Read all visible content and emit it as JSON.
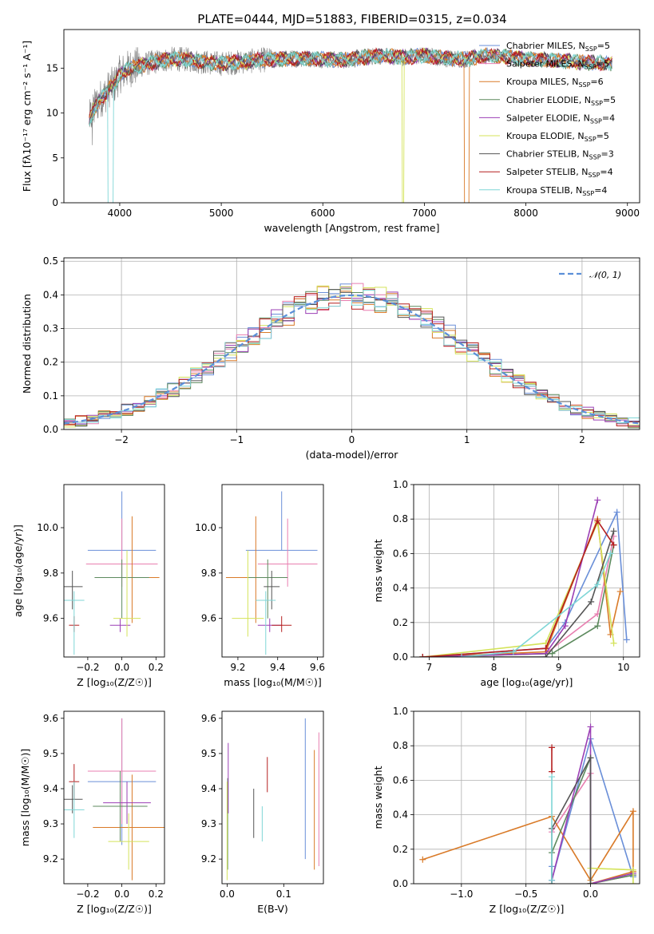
{
  "figure": {
    "title": "PLATE=0444, MJD=51883, FIBERID=0315, z=0.034"
  },
  "colors": {
    "model_palette": [
      "#6a8fd8",
      "#e87fb0",
      "#d97a28",
      "#5d8a5e",
      "#9b3fb5",
      "#d4e35a",
      "#555555",
      "#b51f1f",
      "#7fd6d6"
    ],
    "data": "#7f7f7f",
    "normal": "#5b8fd8",
    "grid": "#b0b0b0"
  },
  "chart_data": [
    {
      "id": "spectrum",
      "type": "line",
      "xlabel": "wavelength [Angstrom, rest frame]",
      "ylabel": "Flux [fλ10⁻¹⁷ erg cm⁻² s⁻¹ A⁻¹]",
      "xlim": [
        3450,
        9120
      ],
      "ylim": [
        0,
        19.3
      ],
      "xticks": [
        4000,
        5000,
        6000,
        7000,
        8000,
        9000
      ],
      "yticks": [
        0,
        5,
        10,
        15
      ],
      "grid": false,
      "legend_position": "top-right",
      "data_series": {
        "name": "data",
        "x": [
          3700,
          3750,
          3800,
          3850,
          3900,
          3950,
          4000,
          4100,
          4200,
          4300,
          4400,
          4500,
          4600,
          4700,
          4800,
          4900,
          5000,
          5200,
          5400,
          5600,
          5800,
          6000,
          6200,
          6400,
          6600,
          6800,
          7000,
          7200,
          7400,
          7600,
          7800,
          8000,
          8200,
          8400,
          8600,
          8850
        ],
        "y": [
          9.2,
          10.5,
          11.5,
          12.0,
          12.8,
          13.2,
          14.3,
          15.0,
          15.3,
          15.6,
          15.8,
          16.0,
          16.0,
          15.9,
          15.7,
          15.6,
          15.5,
          15.7,
          15.9,
          16.0,
          16.1,
          16.0,
          15.9,
          16.2,
          16.4,
          16.2,
          16.4,
          16.1,
          16.0,
          16.4,
          16.3,
          16.0,
          15.9,
          15.8,
          15.6,
          15.5
        ]
      },
      "series": [
        {
          "name": "Chabrier MILES, N_SSP=5",
          "label_main": "Chabrier MILES, N",
          "label_sub": "SSP",
          "label_tail": "=5"
        },
        {
          "name": "Salpeter MILES, N_SSP=5",
          "label_main": "Salpeter MILES, N",
          "label_sub": "SSP",
          "label_tail": "=5"
        },
        {
          "name": "Kroupa MILES, N_SSP=6",
          "label_main": "Kroupa MILES, N",
          "label_sub": "SSP",
          "label_tail": "=6"
        },
        {
          "name": "Chabrier ELODIE, N_SSP=5",
          "label_main": "Chabrier ELODIE, N",
          "label_sub": "SSP",
          "label_tail": "=5"
        },
        {
          "name": "Salpeter ELODIE, N_SSP=4",
          "label_main": "Salpeter ELODIE, N",
          "label_sub": "SSP",
          "label_tail": "=4"
        },
        {
          "name": "Kroupa ELODIE, N_SSP=5",
          "label_main": "Kroupa ELODIE, N",
          "label_sub": "SSP",
          "label_tail": "=5"
        },
        {
          "name": "Chabrier STELIB, N_SSP=3",
          "label_main": "Chabrier STELIB, N",
          "label_sub": "SSP",
          "label_tail": "=3"
        },
        {
          "name": "Salpeter STELIB, N_SSP=4",
          "label_main": "Salpeter STELIB, N",
          "label_sub": "SSP",
          "label_tail": "=4"
        },
        {
          "name": "Kroupa STELIB, N_SSP=4",
          "label_main": "Kroupa STELIB, N",
          "label_sub": "SSP",
          "label_tail": "=4"
        }
      ]
    },
    {
      "id": "residuals",
      "type": "histogram",
      "xlabel": "(data-model)/error",
      "ylabel": "Normed distribution",
      "xlim": [
        -2.5,
        2.5
      ],
      "ylim": [
        0,
        0.51
      ],
      "xticks": [
        -2,
        -1,
        0,
        1,
        2
      ],
      "xtick_labels": [
        "−2",
        "−1",
        "0",
        "1",
        "2"
      ],
      "yticks": [
        0,
        0.1,
        0.2,
        0.3,
        0.4,
        0.5
      ],
      "ytick_labels": [
        "0.0",
        "0.1",
        "0.2",
        "0.3",
        "0.4",
        "0.5"
      ],
      "grid": true,
      "legend_position": "top-right",
      "normal_label": "𝒩(0, 1)",
      "bin_width": 0.1
    },
    {
      "id": "age_vs_Z",
      "type": "errorbar",
      "xlabel": "Z [log₁₀(Z/Z☉)]",
      "ylabel": "age  [log₁₀(age/yr)]",
      "xlim": [
        -0.34,
        0.25
      ],
      "ylim": [
        9.43,
        10.19
      ],
      "xticks": [
        -0.2,
        0.0,
        0.2
      ],
      "xtick_labels": [
        "−0.2",
        "0.0",
        "0.2"
      ],
      "yticks": [
        9.6,
        9.8,
        10.0
      ],
      "ytick_labels": [
        "9.6",
        "9.8",
        "10.0"
      ],
      "grid": false,
      "points": [
        {
          "x": 0.0,
          "xerr": 0.2,
          "y": 9.9,
          "yerr": [
            0.0,
            0.26
          ]
        },
        {
          "x": 0.0,
          "xerr": 0.21,
          "y": 9.84,
          "yerr": [
            0.1,
            0.2
          ]
        },
        {
          "x": 0.06,
          "xerr": 0.16,
          "y": 9.78,
          "yerr": [
            0.2,
            0.27
          ]
        },
        {
          "x": 0.0,
          "xerr": 0.16,
          "y": 9.78,
          "yerr": [
            0.18,
            0.08
          ]
        },
        {
          "x": -0.01,
          "xerr": 0.06,
          "y": 9.57,
          "yerr": [
            0.03,
            0.03
          ]
        },
        {
          "x": 0.03,
          "xerr": 0.08,
          "y": 9.6,
          "yerr": [
            0.08,
            0.3
          ]
        },
        {
          "x": -0.29,
          "xerr": 0.06,
          "y": 9.74,
          "yerr": [
            0.1,
            0.07
          ]
        },
        {
          "x": -0.28,
          "xerr": 0.03,
          "y": 9.57,
          "yerr": [
            0.03,
            0.04
          ]
        },
        {
          "x": -0.28,
          "xerr": 0.06,
          "y": 9.68,
          "yerr": [
            0.24,
            0.04
          ]
        }
      ]
    },
    {
      "id": "age_vs_mass",
      "type": "errorbar",
      "xlabel": "mass [log₁₀(M/M☉)]",
      "ylabel": "",
      "xlim": [
        9.12,
        9.63
      ],
      "ylim": [
        9.43,
        10.19
      ],
      "xticks": [
        9.2,
        9.4,
        9.6
      ],
      "yticks": [
        9.6,
        9.8,
        10.0
      ],
      "ytick_labels": [
        "9.6",
        "9.8",
        "10.0"
      ],
      "grid": false,
      "points": [
        {
          "x": 9.42,
          "xerr": 0.18,
          "y": 9.9,
          "yerr": [
            0.0,
            0.26
          ]
        },
        {
          "x": 9.45,
          "xerr": 0.15,
          "y": 9.84,
          "yerr": [
            0.1,
            0.2
          ]
        },
        {
          "x": 9.29,
          "xerr": 0.15,
          "y": 9.78,
          "yerr": [
            0.2,
            0.27
          ]
        },
        {
          "x": 9.35,
          "xerr": 0.1,
          "y": 9.78,
          "yerr": [
            0.18,
            0.08
          ]
        },
        {
          "x": 9.36,
          "xerr": 0.06,
          "y": 9.57,
          "yerr": [
            0.03,
            0.03
          ]
        },
        {
          "x": 9.25,
          "xerr": 0.08,
          "y": 9.6,
          "yerr": [
            0.08,
            0.3
          ]
        },
        {
          "x": 9.37,
          "xerr": 0.04,
          "y": 9.74,
          "yerr": [
            0.1,
            0.07
          ]
        },
        {
          "x": 9.42,
          "xerr": 0.05,
          "y": 9.57,
          "yerr": [
            0.03,
            0.04
          ]
        },
        {
          "x": 9.34,
          "xerr": 0.05,
          "y": 9.68,
          "yerr": [
            0.24,
            0.04
          ]
        }
      ]
    },
    {
      "id": "weight_vs_age",
      "type": "line",
      "xlabel": "age  [log₁₀(age/yr)]",
      "ylabel": "mass weight",
      "xlim": [
        6.76,
        10.25
      ],
      "ylim": [
        0,
        1
      ],
      "xticks": [
        7,
        8,
        9,
        10
      ],
      "yticks": [
        0,
        0.2,
        0.4,
        0.6,
        0.8,
        1.0
      ],
      "ytick_labels": [
        "0.0",
        "0.2",
        "0.4",
        "0.6",
        "0.8",
        "1.0"
      ],
      "grid": true,
      "series": [
        {
          "x": [
            6.9,
            8.8,
            9.1,
            9.9,
            10.05
          ],
          "y": [
            0.0,
            0.05,
            0.2,
            0.84,
            0.1
          ]
        },
        {
          "x": [
            6.9,
            8.8,
            9.6,
            9.85
          ],
          "y": [
            0.0,
            0.02,
            0.25,
            0.7
          ]
        },
        {
          "x": [
            6.9,
            8.8,
            9.6,
            9.8,
            9.95
          ],
          "y": [
            0.0,
            0.03,
            0.8,
            0.13,
            0.38
          ]
        },
        {
          "x": [
            6.9,
            8.9,
            9.6,
            9.85
          ],
          "y": [
            0.0,
            0.02,
            0.18,
            0.65
          ]
        },
        {
          "x": [
            6.9,
            8.8,
            9.1,
            9.6
          ],
          "y": [
            0.0,
            0.02,
            0.18,
            0.91
          ]
        },
        {
          "x": [
            6.9,
            8.8,
            9.6,
            9.85
          ],
          "y": [
            0.0,
            0.08,
            0.78,
            0.08
          ]
        },
        {
          "x": [
            6.9,
            8.8,
            9.5,
            9.85
          ],
          "y": [
            0.0,
            0.0,
            0.32,
            0.73
          ]
        },
        {
          "x": [
            6.9,
            8.8,
            9.6,
            9.85
          ],
          "y": [
            0.0,
            0.05,
            0.79,
            0.65
          ]
        },
        {
          "x": [
            7.5,
            8.3,
            9.6,
            9.8
          ],
          "y": [
            0.0,
            0.03,
            0.42,
            0.6
          ]
        }
      ]
    },
    {
      "id": "mass_vs_Z",
      "type": "errorbar",
      "xlabel": "Z [log₁₀(Z/Z☉)]",
      "ylabel": "mass [log₁₀(M/M☉)]",
      "xlim": [
        -0.34,
        0.25
      ],
      "ylim": [
        9.13,
        9.62
      ],
      "xticks": [
        -0.2,
        0.0,
        0.2
      ],
      "xtick_labels": [
        "−0.2",
        "0.0",
        "0.2"
      ],
      "yticks": [
        9.2,
        9.3,
        9.4,
        9.5,
        9.6
      ],
      "ytick_labels": [
        "9.2",
        "9.3",
        "9.4",
        "9.5",
        "9.6"
      ],
      "grid": false,
      "points": [
        {
          "x": 0.0,
          "xerr": 0.2,
          "y": 9.42,
          "yerr": 0.18
        },
        {
          "x": 0.0,
          "xerr": 0.2,
          "y": 9.45,
          "yerr": 0.15
        },
        {
          "x": 0.06,
          "xerr": 0.23,
          "y": 9.29,
          "yerr": 0.15
        },
        {
          "x": -0.01,
          "xerr": 0.16,
          "y": 9.35,
          "yerr": 0.1
        },
        {
          "x": 0.03,
          "xerr": 0.14,
          "y": 9.36,
          "yerr": 0.06
        },
        {
          "x": 0.04,
          "xerr": 0.12,
          "y": 9.25,
          "yerr": 0.08
        },
        {
          "x": -0.29,
          "xerr": 0.06,
          "y": 9.37,
          "yerr": 0.04
        },
        {
          "x": -0.28,
          "xerr": 0.03,
          "y": 9.42,
          "yerr": 0.05
        },
        {
          "x": -0.28,
          "xerr": 0.06,
          "y": 9.34,
          "yerr": 0.08
        }
      ]
    },
    {
      "id": "mass_vs_ebv",
      "type": "errorbar",
      "xlabel": "E(B-V)",
      "ylabel": "",
      "xlim": [
        -0.009,
        0.17
      ],
      "ylim": [
        9.13,
        9.62
      ],
      "xticks": [
        0.0,
        0.1
      ],
      "xtick_labels": [
        "0.0",
        "0.1"
      ],
      "yticks": [
        9.2,
        9.3,
        9.4,
        9.5,
        9.6
      ],
      "ytick_labels": [
        "9.2",
        "9.3",
        "9.4",
        "9.5",
        "9.6"
      ],
      "grid": false,
      "points": [
        {
          "x": 0.138,
          "y": 9.4,
          "yerr": 0.2
        },
        {
          "x": 0.162,
          "y": 9.37,
          "yerr": 0.19
        },
        {
          "x": 0.154,
          "y": 9.34,
          "yerr": 0.17
        },
        {
          "x": 0.001,
          "y": 9.3,
          "yerr": 0.13
        },
        {
          "x": 0.002,
          "y": 9.43,
          "yerr": 0.1
        },
        {
          "x": 0.0,
          "y": 9.28,
          "yerr": 0.14
        },
        {
          "x": 0.047,
          "y": 9.33,
          "yerr": 0.07
        },
        {
          "x": 0.071,
          "y": 9.44,
          "yerr": 0.05
        },
        {
          "x": 0.062,
          "y": 9.3,
          "yerr": 0.05
        }
      ]
    },
    {
      "id": "weight_vs_Z",
      "type": "line",
      "xlabel": "Z [log₁₀(Z/Z☉)]",
      "ylabel": "mass weight",
      "xlim": [
        -1.37,
        0.38
      ],
      "ylim": [
        0,
        1
      ],
      "xticks": [
        -1.0,
        -0.5,
        0.0
      ],
      "xtick_labels": [
        "−1.0",
        "−0.5",
        "0.0"
      ],
      "yticks": [
        0,
        0.2,
        0.4,
        0.6,
        0.8,
        1.0
      ],
      "ytick_labels": [
        "0.0",
        "0.2",
        "0.4",
        "0.6",
        "0.8",
        "1.0"
      ],
      "grid": true,
      "series": [
        {
          "x": [
            -0.3,
            -0.3,
            0.0,
            0.33
          ],
          "y": [
            0.1,
            0.02,
            0.84,
            0.04
          ]
        },
        {
          "x": [
            -0.3,
            0.0,
            0.0,
            0.33
          ],
          "y": [
            0.3,
            0.64,
            0.0,
            0.05
          ]
        },
        {
          "x": [
            -1.3,
            -0.3,
            0.0,
            0.33,
            0.33,
            0.0
          ],
          "y": [
            0.14,
            0.39,
            0.02,
            0.42,
            0.07,
            0.0
          ]
        },
        {
          "x": [
            -0.3,
            0.0,
            0.0,
            0.33
          ],
          "y": [
            0.18,
            0.73,
            0.0,
            0.05
          ]
        },
        {
          "x": [
            -0.3,
            0.0,
            0.0,
            0.33
          ],
          "y": [
            0.02,
            0.91,
            0.0,
            0.06
          ]
        },
        {
          "x": [
            0.0,
            0.0,
            0.33,
            0.33
          ],
          "y": [
            0.0,
            0.09,
            0.08,
            0.0
          ]
        },
        {
          "x": [
            -0.3,
            -0.3,
            0.0,
            0.0
          ],
          "y": [
            0.0,
            0.32,
            0.73,
            0.0
          ]
        },
        {
          "x": [
            -0.3,
            -0.3
          ],
          "y": [
            0.79,
            0.65
          ]
        },
        {
          "x": [
            -0.3,
            -0.3
          ],
          "y": [
            0.02,
            0.62
          ]
        }
      ]
    }
  ]
}
